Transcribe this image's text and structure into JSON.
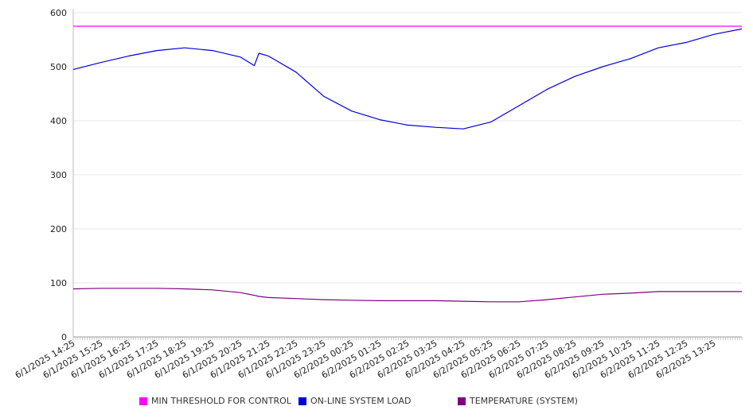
{
  "chart_data": {
    "type": "line",
    "title": "",
    "xlabel": "",
    "ylabel": "",
    "ylim": [
      0,
      600
    ],
    "yticks": [
      0,
      100,
      200,
      300,
      400,
      500,
      600
    ],
    "grid": true,
    "legend_position": "bottom",
    "x_tick_labels": [
      "6/1/2025 14:25",
      "6/1/2025 15:25",
      "6/1/2025 16:25",
      "6/1/2025 17:25",
      "6/1/2025 18:25",
      "6/1/2025 19:25",
      "6/1/2025 20:25",
      "6/1/2025 21:25",
      "6/1/2025 22:25",
      "6/1/2025 23:25",
      "6/2/2025 00:25",
      "6/2/2025 01:25",
      "6/2/2025 02:25",
      "6/2/2025 03:25",
      "6/2/2025 04:25",
      "6/2/2025 05:25",
      "6/2/2025 06:25",
      "6/2/2025 07:25",
      "6/2/2025 08:25",
      "6/2/2025 09:25",
      "6/2/2025 10:25",
      "6/2/2025 11:25",
      "6/2/2025 12:25",
      "6/2/2025 13:25"
    ],
    "x": [
      "6/1/2025 14:25",
      "6/1/2025 15:25",
      "6/1/2025 16:25",
      "6/1/2025 17:25",
      "6/1/2025 18:25",
      "6/1/2025 19:25",
      "6/1/2025 20:25",
      "6/1/2025 20:55",
      "6/1/2025 21:05",
      "6/1/2025 21:25",
      "6/1/2025 22:25",
      "6/1/2025 23:25",
      "6/2/2025 00:25",
      "6/2/2025 01:25",
      "6/2/2025 02:25",
      "6/2/2025 03:25",
      "6/2/2025 04:25",
      "6/2/2025 05:25",
      "6/2/2025 06:25",
      "6/2/2025 07:25",
      "6/2/2025 08:25",
      "6/2/2025 09:25",
      "6/2/2025 10:25",
      "6/2/2025 11:25",
      "6/2/2025 12:25",
      "6/2/2025 13:25",
      "6/2/2025 14:25"
    ],
    "series": [
      {
        "name": "MIN THRESHOLD FOR CONTROL",
        "color": "#ff00ff",
        "values": [
          575,
          575,
          575,
          575,
          575,
          575,
          575,
          575,
          575,
          575,
          575,
          575,
          575,
          575,
          575,
          575,
          575,
          575,
          575,
          575,
          575,
          575,
          575,
          575,
          575,
          575,
          575
        ]
      },
      {
        "name": "ON-LINE SYSTEM LOAD",
        "color": "#0000dd",
        "values": [
          495,
          508,
          520,
          530,
          535,
          530,
          518,
          502,
          525,
          520,
          490,
          445,
          418,
          402,
          392,
          388,
          385,
          398,
          428,
          458,
          482,
          500,
          515,
          535,
          545,
          560,
          570
        ]
      },
      {
        "name": "TEMPERATURE (SYSTEM)",
        "color": "#800080",
        "values": [
          89,
          90,
          90,
          90,
          89,
          87,
          82,
          77,
          75,
          73,
          71,
          69,
          68,
          67,
          67,
          67,
          66,
          65,
          65,
          69,
          74,
          79,
          81,
          84,
          84,
          84,
          84
        ]
      }
    ]
  }
}
